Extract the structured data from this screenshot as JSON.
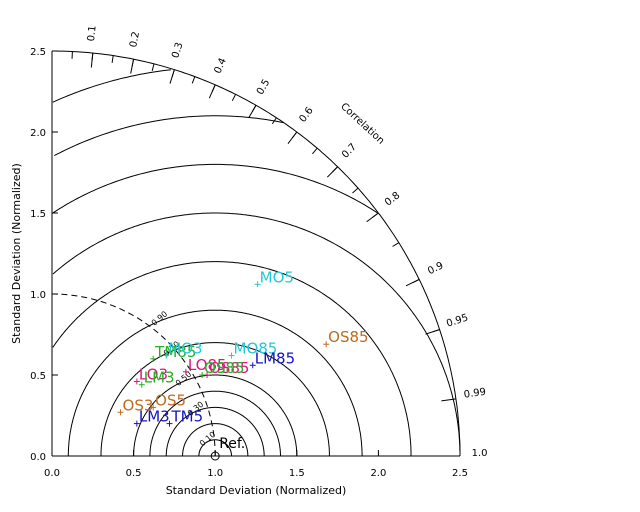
{
  "chart_data": {
    "type": "taylor",
    "xlabel": "Standard Deviation (Normalized)",
    "ylabel": "Standard Deviation (Normalized)",
    "xlim": [
      0,
      2.5
    ],
    "ylim": [
      0,
      2.5
    ],
    "x_ticks": [
      "0.0",
      "0.5",
      "1.0",
      "1.5",
      "2.0",
      "2.5"
    ],
    "y_ticks": [
      "0.0",
      "0.5",
      "1.0",
      "1.5",
      "2.0",
      "2.5"
    ],
    "correlation_title": "Correlation",
    "correlation_ticks": [
      {
        "value": 0.1,
        "label": "0.1"
      },
      {
        "value": 0.2,
        "label": "0.2"
      },
      {
        "value": 0.3,
        "label": "0.3"
      },
      {
        "value": 0.4,
        "label": "0.4"
      },
      {
        "value": 0.5,
        "label": "0.5"
      },
      {
        "value": 0.6,
        "label": "0.6"
      },
      {
        "value": 0.7,
        "label": "0.7"
      },
      {
        "value": 0.8,
        "label": "0.8"
      },
      {
        "value": 0.9,
        "label": "0.9"
      },
      {
        "value": 0.95,
        "label": "0.95"
      },
      {
        "value": 0.99,
        "label": "0.99"
      },
      {
        "value": 1.0,
        "label": "1.0"
      }
    ],
    "rmsd_contours": [
      {
        "value": 0.1,
        "label": "0.10"
      },
      {
        "value": 0.2,
        "label": ""
      },
      {
        "value": 0.3,
        "label": "0.30"
      },
      {
        "value": 0.4,
        "label": ""
      },
      {
        "value": 0.5,
        "label": "0.50"
      },
      {
        "value": 0.7,
        "label": "0.70"
      },
      {
        "value": 0.9,
        "label": "0.90"
      },
      {
        "value": 1.2,
        "label": ""
      },
      {
        "value": 1.5,
        "label": ""
      },
      {
        "value": 1.8,
        "label": ""
      },
      {
        "value": 2.1,
        "label": ""
      },
      {
        "value": 2.4,
        "label": ""
      }
    ],
    "reference": {
      "label": "Ref.",
      "std": 1.0
    },
    "points": [
      {
        "label": "MO5",
        "x": 1.26,
        "y": 1.06,
        "color": "#22c8d8"
      },
      {
        "label": "OS85",
        "x": 1.68,
        "y": 0.69,
        "color": "#c06a1e"
      },
      {
        "label": "MO85",
        "x": 1.1,
        "y": 0.62,
        "color": "#22c8d8"
      },
      {
        "label": "LM85",
        "x": 1.23,
        "y": 0.56,
        "color": "#1414c0"
      },
      {
        "label": "LO85",
        "x": 0.82,
        "y": 0.52,
        "color": "#e0147a"
      },
      {
        "label": "OS85",
        "x": 0.95,
        "y": 0.5,
        "color": "#e0147a"
      },
      {
        "label": "OS85",
        "x": 0.92,
        "y": 0.5,
        "color": "#22b222"
      },
      {
        "label": "TM85",
        "x": 0.62,
        "y": 0.6,
        "color": "#22b222"
      },
      {
        "label": "MO3",
        "x": 0.7,
        "y": 0.62,
        "color": "#22c8d8"
      },
      {
        "label": "LO3",
        "x": 0.52,
        "y": 0.46,
        "color": "#e0147a"
      },
      {
        "label": "LM3",
        "x": 0.55,
        "y": 0.44,
        "color": "#22b222"
      },
      {
        "label": "OS5",
        "x": 0.62,
        "y": 0.3,
        "color": "#c06a1e"
      },
      {
        "label": "OS3",
        "x": 0.42,
        "y": 0.27,
        "color": "#c06a1e"
      },
      {
        "label": "LM3",
        "x": 0.52,
        "y": 0.2,
        "color": "#1414c0"
      },
      {
        "label": "TM5",
        "x": 0.72,
        "y": 0.2,
        "color": "#1414c0"
      }
    ]
  }
}
